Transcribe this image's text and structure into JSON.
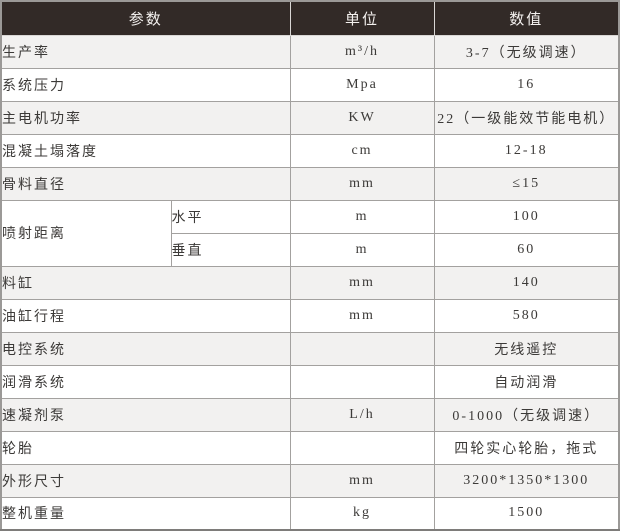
{
  "spec": {
    "headers": {
      "param": "参数",
      "unit": "单位",
      "value": "数值"
    },
    "rows": [
      {
        "param": "生产率",
        "unit": "m³/h",
        "value": "3-7（无级调速）"
      },
      {
        "param": "系统压力",
        "unit": "Mpa",
        "value": "16"
      },
      {
        "param": "主电机功率",
        "unit": "KW",
        "value": "22（一级能效节能电机）"
      },
      {
        "param": "混凝土塌落度",
        "unit": "cm",
        "value": "12-18"
      },
      {
        "param": "骨料直径",
        "unit": "mm",
        "value": "≤15"
      },
      {
        "param": "喷射距离",
        "sub": [
          {
            "label": "水平",
            "unit": "m",
            "value": "100"
          },
          {
            "label": "垂直",
            "unit": "m",
            "value": "60"
          }
        ]
      },
      {
        "param": "料缸",
        "unit": "mm",
        "value": "140"
      },
      {
        "param": "油缸行程",
        "unit": "mm",
        "value": "580"
      },
      {
        "param": "电控系统",
        "unit": "",
        "value": "无线遥控"
      },
      {
        "param": "润滑系统",
        "unit": "",
        "value": "自动润滑"
      },
      {
        "param": "速凝剂泵",
        "unit": "L/h",
        "value": "0-1000（无级调速）"
      },
      {
        "param": "轮胎",
        "unit": "",
        "value": "四轮实心轮胎，拖式"
      },
      {
        "param": "外形尺寸",
        "unit": "mm",
        "value": "3200*1350*1300"
      },
      {
        "param": "整机重量",
        "unit": "kg",
        "value": "1500"
      }
    ],
    "colors": {
      "header_bg": "#322a27",
      "header_text": "#f4f1ef",
      "row_shade": "#f2f1f0",
      "row_plain": "#ffffff",
      "border": "#a3a19f",
      "text": "#3c3a38"
    }
  },
  "chart_data": {
    "type": "table",
    "title": "",
    "columns": [
      "参数",
      "单位",
      "数值"
    ],
    "rows": [
      [
        "生产率",
        "m³/h",
        "3-7（无级调速）"
      ],
      [
        "系统压力",
        "Mpa",
        "16"
      ],
      [
        "主电机功率",
        "KW",
        "22（一级能效节能电机）"
      ],
      [
        "混凝土塌落度",
        "cm",
        "12-18"
      ],
      [
        "骨料直径",
        "mm",
        "≤15"
      ],
      [
        "喷射距离-水平",
        "m",
        "100"
      ],
      [
        "喷射距离-垂直",
        "m",
        "60"
      ],
      [
        "料缸",
        "mm",
        "140"
      ],
      [
        "油缸行程",
        "mm",
        "580"
      ],
      [
        "电控系统",
        "",
        "无线遥控"
      ],
      [
        "润滑系统",
        "",
        "自动润滑"
      ],
      [
        "速凝剂泵",
        "L/h",
        "0-1000（无级调速）"
      ],
      [
        "轮胎",
        "",
        "四轮实心轮胎，拖式"
      ],
      [
        "外形尺寸",
        "mm",
        "3200*1350*1300"
      ],
      [
        "整机重量",
        "kg",
        "1500"
      ]
    ]
  }
}
